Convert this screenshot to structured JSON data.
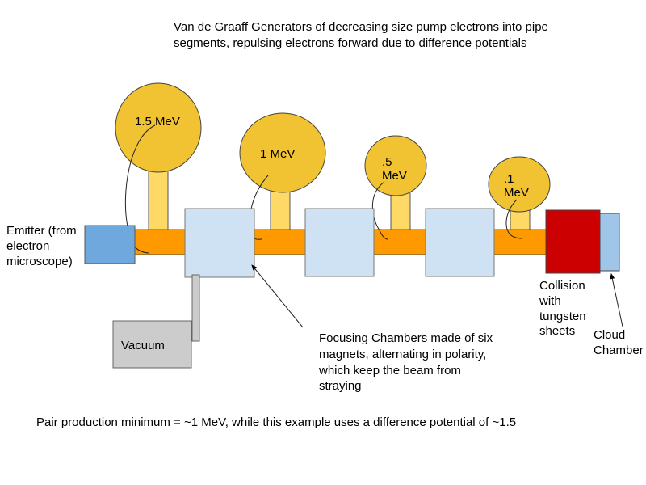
{
  "title": {
    "line1": "Van de Graaff Generators of decreasing size pump electrons into pipe",
    "line2": "segments, repulsing electrons forward due to difference potentials"
  },
  "generators": [
    {
      "label_lines": [
        "1.5 MeV"
      ]
    },
    {
      "label_lines": [
        "1 MeV"
      ]
    },
    {
      "label_lines": [
        ".5",
        "MeV"
      ]
    },
    {
      "label_lines": [
        ".1",
        "MeV"
      ]
    }
  ],
  "emitter": {
    "label_lines": [
      "Emitter (from",
      "electron",
      "microscope)"
    ]
  },
  "vacuum": {
    "label": "Vacuum"
  },
  "focusing": {
    "label_lines": [
      "Focusing Chambers made of six",
      "magnets, alternating in polarity,",
      "which keep the beam from",
      "straying"
    ]
  },
  "collision": {
    "label_lines": [
      "Collision",
      "with",
      "tungsten",
      "sheets"
    ]
  },
  "cloud_chamber": {
    "label_lines": [
      "Cloud",
      "Chamber"
    ]
  },
  "footer": "Pair production minimum = ~1 MeV, while this example uses a difference potential of ~1.5",
  "colors": {
    "sphere": "#f1c232",
    "stem": "#ffd966",
    "pipe": "#ff9900",
    "emitter": "#6fa8dc",
    "chamber": "#cfe2f3",
    "collision": "#cc0000",
    "cloud_chamber": "#9fc5e8",
    "vacuum": "#cccccc"
  }
}
